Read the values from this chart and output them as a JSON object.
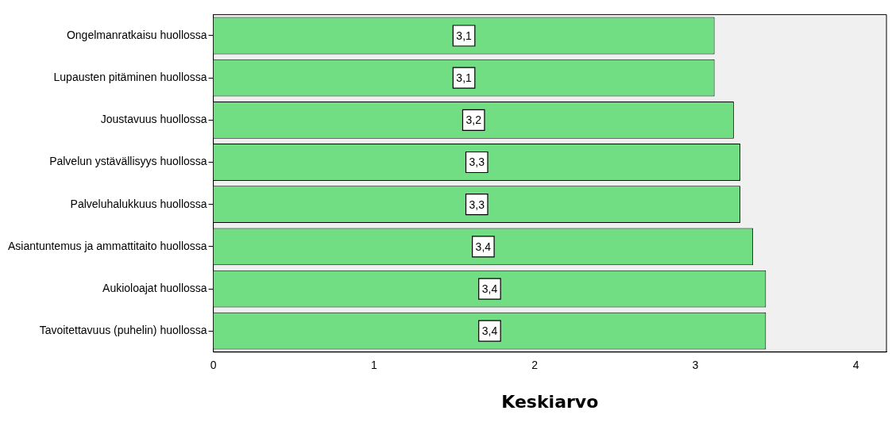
{
  "chart_data": {
    "type": "bar",
    "orientation": "horizontal",
    "xlabel": "Keskiarvo",
    "categories": [
      "Ongelmanratkaisu huollossa",
      "Lupausten pitäminen huollossa",
      "Joustavuus huollossa",
      "Palvelun ystävällisyys huollossa",
      "Palveluhalukkuus huollossa",
      "Asiantuntemus ja ammattitaito huollossa",
      "Aukioloajat huollossa",
      "Tavoitettavuus (puhelin) huollossa"
    ],
    "values": [
      3.12,
      3.12,
      3.24,
      3.28,
      3.28,
      3.36,
      3.44,
      3.44
    ],
    "value_labels": [
      "3,1",
      "3,1",
      "3,2",
      "3,3",
      "3,3",
      "3,4",
      "3,4",
      "3,4"
    ],
    "color": "#72de84",
    "xlim": [
      0,
      4.19
    ],
    "xticks": [
      0,
      1,
      2,
      3,
      4
    ],
    "grid": false,
    "legend": false
  }
}
